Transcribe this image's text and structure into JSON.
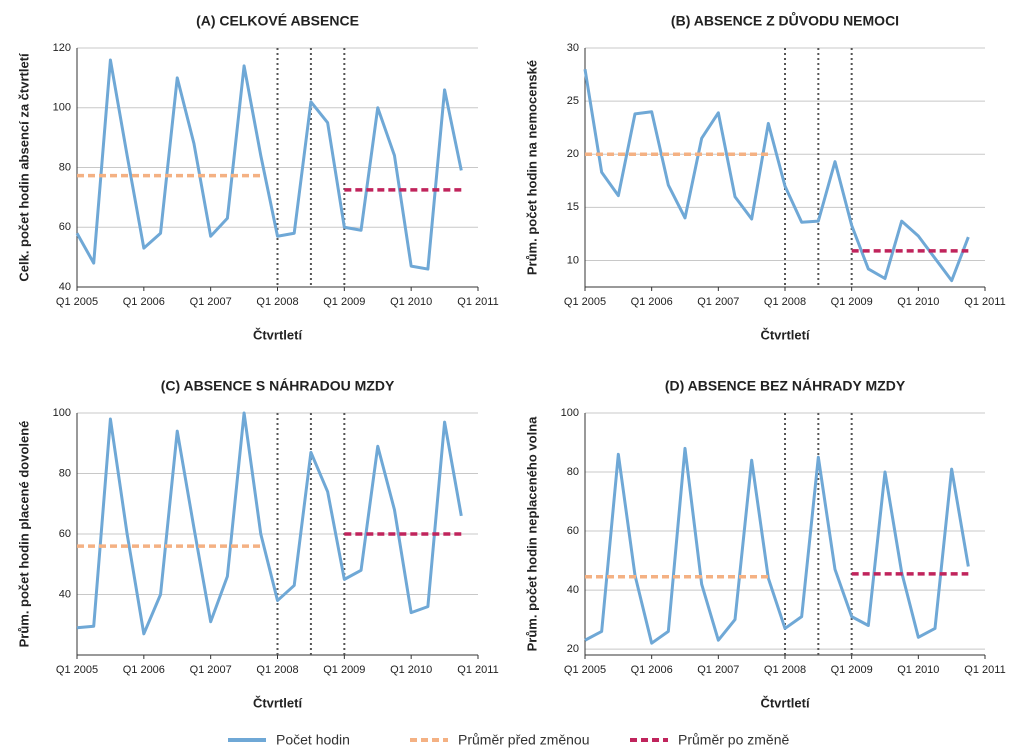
{
  "chart_data": [
    {
      "type": "line",
      "title": "(A) CELKOVÉ ABSENCE",
      "xlabel": "Čtvrtletí",
      "ylabel": "Celk. počet hodin absencí za čtvrtletí",
      "x": [
        2005,
        2005.25,
        2005.5,
        2005.75,
        2006,
        2006.25,
        2006.5,
        2006.75,
        2007,
        2007.25,
        2007.5,
        2007.75,
        2008,
        2008.25,
        2008.5,
        2008.75,
        2009,
        2009.25,
        2009.5,
        2009.75,
        2010,
        2010.25,
        2010.5,
        2010.75
      ],
      "xlim": [
        2005,
        2011
      ],
      "xticks": [
        {
          "value": 2005,
          "label": "Q1 2005"
        },
        {
          "value": 2006,
          "label": "Q1 2006"
        },
        {
          "value": 2007,
          "label": "Q1 2007"
        },
        {
          "value": 2008,
          "label": "Q1 2008"
        },
        {
          "value": 2009,
          "label": "Q1 2009"
        },
        {
          "value": 2010,
          "label": "Q1 2010"
        },
        {
          "value": 2011,
          "label": "Q1 2011"
        }
      ],
      "ylim": [
        40,
        120
      ],
      "yticks": [
        40,
        60,
        80,
        100,
        120
      ],
      "grid": true,
      "vlines": [
        2008,
        2008.5,
        2009
      ],
      "series": [
        {
          "name": "Počet hodin",
          "color": "#6fa8d6",
          "style": "solid",
          "values": [
            58,
            48,
            116,
            84,
            53,
            58,
            110,
            88,
            57,
            63,
            114,
            84,
            57,
            58,
            102,
            95,
            60,
            59,
            100,
            84,
            47,
            46,
            106,
            79
          ]
        },
        {
          "name": "Průměr před změnou",
          "color": "#f4b183",
          "style": "dashed",
          "values": [
            77.3,
            77.3,
            77.3,
            77.3,
            77.3,
            77.3,
            77.3,
            77.3,
            77.3,
            77.3,
            77.3,
            77.3,
            null,
            null,
            null,
            null,
            null,
            null,
            null,
            null,
            null,
            null,
            null,
            null
          ]
        },
        {
          "name": "Průměr po změně",
          "color": "#c0245c",
          "style": "dashed",
          "values": [
            null,
            null,
            null,
            null,
            null,
            null,
            null,
            null,
            null,
            null,
            null,
            null,
            null,
            null,
            null,
            null,
            72.5,
            72.5,
            72.5,
            72.5,
            72.5,
            72.5,
            72.5,
            72.5
          ]
        }
      ]
    },
    {
      "type": "line",
      "title": "(B) ABSENCE Z DŮVODU NEMOCI",
      "xlabel": "Čtvrtletí",
      "ylabel": "Prům. počet hodin na nemocenské",
      "x": [
        2005,
        2005.25,
        2005.5,
        2005.75,
        2006,
        2006.25,
        2006.5,
        2006.75,
        2007,
        2007.25,
        2007.5,
        2007.75,
        2008,
        2008.25,
        2008.5,
        2008.75,
        2009,
        2009.25,
        2009.5,
        2009.75,
        2010,
        2010.25,
        2010.5,
        2010.75
      ],
      "xlim": [
        2005,
        2011
      ],
      "xticks": [
        {
          "value": 2005,
          "label": "Q1 2005"
        },
        {
          "value": 2006,
          "label": "Q1 2006"
        },
        {
          "value": 2007,
          "label": "Q1 2007"
        },
        {
          "value": 2008,
          "label": "Q1 2008"
        },
        {
          "value": 2009,
          "label": "Q1 2009"
        },
        {
          "value": 2010,
          "label": "Q1 2010"
        },
        {
          "value": 2011,
          "label": "Q1 2011"
        }
      ],
      "ylim": [
        7.5,
        30
      ],
      "yticks": [
        10,
        15,
        20,
        25,
        30
      ],
      "grid": true,
      "vlines": [
        2008,
        2008.5,
        2009
      ],
      "series": [
        {
          "color": "#6fa8d6",
          "style": "solid",
          "values": [
            28,
            18.3,
            16.1,
            23.8,
            24,
            17.1,
            14,
            21.5,
            23.9,
            16,
            13.9,
            22.9,
            17,
            13.6,
            13.7,
            19.3,
            13.3,
            9.2,
            8.3,
            13.7,
            12.3,
            10.2,
            8.1,
            12.2
          ]
        },
        {
          "color": "#f4b183",
          "style": "dashed",
          "values": [
            20,
            20,
            20,
            20,
            20,
            20,
            20,
            20,
            20,
            20,
            20,
            20,
            null,
            null,
            null,
            null,
            null,
            null,
            null,
            null,
            null,
            null,
            null,
            null
          ]
        },
        {
          "color": "#c0245c",
          "style": "dashed",
          "values": [
            null,
            null,
            null,
            null,
            null,
            null,
            null,
            null,
            null,
            null,
            null,
            null,
            null,
            null,
            null,
            null,
            10.9,
            10.9,
            10.9,
            10.9,
            10.9,
            10.9,
            10.9,
            10.9
          ]
        }
      ]
    },
    {
      "type": "line",
      "title": "(C) ABSENCE S NÁHRADOU MZDY",
      "xlabel": "Čtvrtletí",
      "ylabel": "Prům. počet hodin placené dovolené",
      "x": [
        2005,
        2005.25,
        2005.5,
        2005.75,
        2006,
        2006.25,
        2006.5,
        2006.75,
        2007,
        2007.25,
        2007.5,
        2007.75,
        2008,
        2008.25,
        2008.5,
        2008.75,
        2009,
        2009.25,
        2009.5,
        2009.75,
        2010,
        2010.25,
        2010.5,
        2010.75
      ],
      "xlim": [
        2005,
        2011
      ],
      "xticks": [
        {
          "value": 2005,
          "label": "Q1 2005"
        },
        {
          "value": 2006,
          "label": "Q1 2006"
        },
        {
          "value": 2007,
          "label": "Q1 2007"
        },
        {
          "value": 2008,
          "label": "Q1 2008"
        },
        {
          "value": 2009,
          "label": "Q1 2009"
        },
        {
          "value": 2010,
          "label": "Q1 2010"
        },
        {
          "value": 2011,
          "label": "Q1 2011"
        }
      ],
      "ylim": [
        20,
        100
      ],
      "yticks": [
        40,
        60,
        80,
        100
      ],
      "grid": true,
      "vlines": [
        2008,
        2008.5,
        2009
      ],
      "series": [
        {
          "color": "#6fa8d6",
          "style": "solid",
          "values": [
            29,
            29.5,
            98,
            60,
            27,
            40,
            94,
            62,
            31,
            46,
            100,
            60,
            38,
            43,
            87,
            74,
            45,
            48,
            89,
            68,
            34,
            36,
            97,
            66
          ]
        },
        {
          "color": "#f4b183",
          "style": "dashed",
          "values": [
            56,
            56,
            56,
            56,
            56,
            56,
            56,
            56,
            56,
            56,
            56,
            56,
            null,
            null,
            null,
            null,
            null,
            null,
            null,
            null,
            null,
            null,
            null,
            null
          ]
        },
        {
          "color": "#c0245c",
          "style": "dashed",
          "values": [
            null,
            null,
            null,
            null,
            null,
            null,
            null,
            null,
            null,
            null,
            null,
            null,
            null,
            null,
            null,
            null,
            60,
            60,
            60,
            60,
            60,
            60,
            60,
            60
          ]
        }
      ]
    },
    {
      "type": "line",
      "title": "(D) ABSENCE BEZ NÁHRADY MZDY",
      "xlabel": "Čtvrtletí",
      "ylabel": "Prům. počet hodin neplaceného volna",
      "x": [
        2005,
        2005.25,
        2005.5,
        2005.75,
        2006,
        2006.25,
        2006.5,
        2006.75,
        2007,
        2007.25,
        2007.5,
        2007.75,
        2008,
        2008.25,
        2008.5,
        2008.75,
        2009,
        2009.25,
        2009.5,
        2009.75,
        2010,
        2010.25,
        2010.5,
        2010.75
      ],
      "xlim": [
        2005,
        2011
      ],
      "xticks": [
        {
          "value": 2005,
          "label": "Q1 2005"
        },
        {
          "value": 2006,
          "label": "Q1 2006"
        },
        {
          "value": 2007,
          "label": "Q1 2007"
        },
        {
          "value": 2008,
          "label": "Q1 2008"
        },
        {
          "value": 2009,
          "label": "Q1 2009"
        },
        {
          "value": 2010,
          "label": "Q1 2010"
        },
        {
          "value": 2011,
          "label": "Q1 2011"
        }
      ],
      "ylim": [
        18,
        100
      ],
      "yticks": [
        20,
        40,
        60,
        80,
        100
      ],
      "grid": true,
      "vlines": [
        2008,
        2008.5,
        2009
      ],
      "series": [
        {
          "color": "#6fa8d6",
          "style": "solid",
          "values": [
            23,
            26,
            86,
            45,
            22,
            26,
            88,
            42,
            23,
            30,
            84,
            44,
            27,
            31,
            85,
            47,
            31,
            28,
            80,
            46,
            24,
            27,
            81,
            48
          ]
        },
        {
          "color": "#f4b183",
          "style": "dashed",
          "values": [
            44.5,
            44.5,
            44.5,
            44.5,
            44.5,
            44.5,
            44.5,
            44.5,
            44.5,
            44.5,
            44.5,
            44.5,
            null,
            null,
            null,
            null,
            null,
            null,
            null,
            null,
            null,
            null,
            null,
            null
          ]
        },
        {
          "color": "#c0245c",
          "style": "dashed",
          "values": [
            null,
            null,
            null,
            null,
            null,
            null,
            null,
            null,
            null,
            null,
            null,
            null,
            null,
            null,
            null,
            null,
            45.5,
            45.5,
            45.5,
            45.5,
            45.5,
            45.5,
            45.5,
            45.5
          ]
        }
      ]
    }
  ]
}
